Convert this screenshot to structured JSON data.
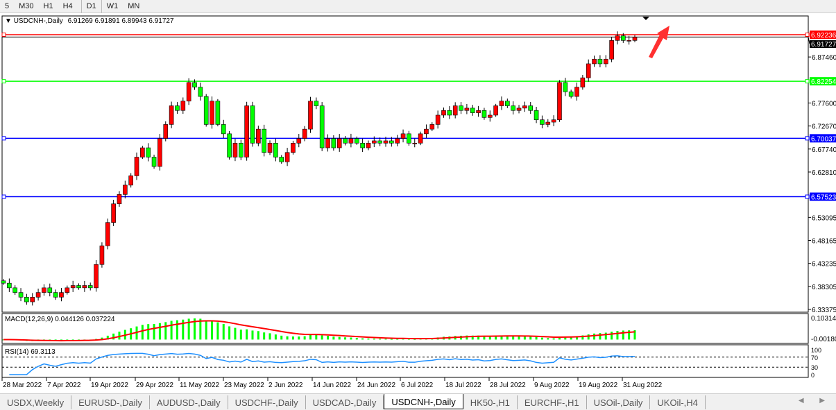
{
  "toolbar": {
    "timeframes": [
      {
        "label": "5"
      },
      {
        "label": "M30"
      },
      {
        "label": "H1"
      },
      {
        "label": "H4"
      },
      {
        "label": "D1",
        "active": true
      },
      {
        "label": "W1"
      },
      {
        "label": "MN"
      }
    ]
  },
  "chart": {
    "symbol_label": "USDCNH-,Daily",
    "ohlc_label": "6.91269 6.91891 6.89943 6.91727"
  },
  "colors": {
    "bull": "#ff0000",
    "bear": "#00ff00",
    "wick": "#000000",
    "macd_hist": "#00ff00",
    "macd_signal": "#ff0000",
    "rsi": "#1e90ff",
    "arrow": "#ff3030"
  },
  "chart_data": {
    "type": "candlestick",
    "price_ticks": [
      "6.87460",
      "6.77600",
      "6.72670",
      "6.67740",
      "6.62810",
      "6.53095",
      "6.48165",
      "6.43235",
      "6.38305",
      "6.33375"
    ],
    "price_range": [
      6.33375,
      6.92236
    ],
    "current_price": "6.91727",
    "horizontal_lines": [
      {
        "price": "6.92236",
        "color": "#ff0000"
      },
      {
        "price": "6.82254",
        "color": "#00ff00"
      },
      {
        "price": "6.70037",
        "color": "#0000ff"
      },
      {
        "price": "6.57523",
        "color": "#0000ff"
      }
    ],
    "date_labels": [
      "28 Mar 2022",
      "7 Apr 2022",
      "19 Apr 2022",
      "29 Apr 2022",
      "11 May 2022",
      "23 May 2022",
      "2 Jun 2022",
      "14 Jun 2022",
      "24 Jun 2022",
      "6 Jul 2022",
      "18 Jul 2022",
      "28 Jul 2022",
      "9 Aug 2022",
      "19 Aug 2022",
      "31 Aug 2022"
    ],
    "closes": [
      6.39,
      6.38,
      6.37,
      6.36,
      6.35,
      6.36,
      6.37,
      6.38,
      6.37,
      6.36,
      6.37,
      6.38,
      6.385,
      6.38,
      6.385,
      6.38,
      6.43,
      6.47,
      6.52,
      6.56,
      6.58,
      6.6,
      6.62,
      6.66,
      6.68,
      6.66,
      6.64,
      6.7,
      6.73,
      6.77,
      6.76,
      6.78,
      6.82,
      6.81,
      6.79,
      6.73,
      6.78,
      6.73,
      6.71,
      6.66,
      6.69,
      6.66,
      6.77,
      6.69,
      6.72,
      6.67,
      6.69,
      6.66,
      6.65,
      6.67,
      6.69,
      6.7,
      6.72,
      6.78,
      6.77,
      6.68,
      6.7,
      6.68,
      6.7,
      6.69,
      6.7,
      6.69,
      6.68,
      6.69,
      6.695,
      6.69,
      6.695,
      6.69,
      6.7,
      6.71,
      6.69,
      6.69,
      6.71,
      6.72,
      6.73,
      6.75,
      6.76,
      6.75,
      6.77,
      6.76,
      6.765,
      6.755,
      6.76,
      6.745,
      6.75,
      6.77,
      6.78,
      6.77,
      6.76,
      6.765,
      6.77,
      6.76,
      6.74,
      6.73,
      6.735,
      6.74,
      6.82,
      6.8,
      6.79,
      6.81,
      6.83,
      6.86,
      6.87,
      6.86,
      6.87,
      6.91,
      6.92,
      6.91,
      6.91,
      6.917
    ],
    "macd": {
      "label": "MACD(12,26,9) 0.044126 0.037224",
      "ticks": [
        "0.103149",
        "-0.00180"
      ]
    },
    "rsi": {
      "label": "RSI(14) 69.3113",
      "ticks": [
        "100",
        "70",
        "30",
        "0"
      ],
      "levels": [
        70,
        30
      ]
    }
  },
  "tabs": [
    {
      "label": "USDX,Weekly"
    },
    {
      "label": "EURUSD-,Daily"
    },
    {
      "label": "AUDUSD-,Daily"
    },
    {
      "label": "USDCHF-,Daily"
    },
    {
      "label": "USDCAD-,Daily"
    },
    {
      "label": "USDCNH-,Daily",
      "active": true
    },
    {
      "label": "HK50-,H1"
    },
    {
      "label": "EURCHF-,H1"
    },
    {
      "label": "USOil-,Daily"
    },
    {
      "label": "UKOil-,H4"
    }
  ],
  "tab_scroll": "◀ ▶"
}
